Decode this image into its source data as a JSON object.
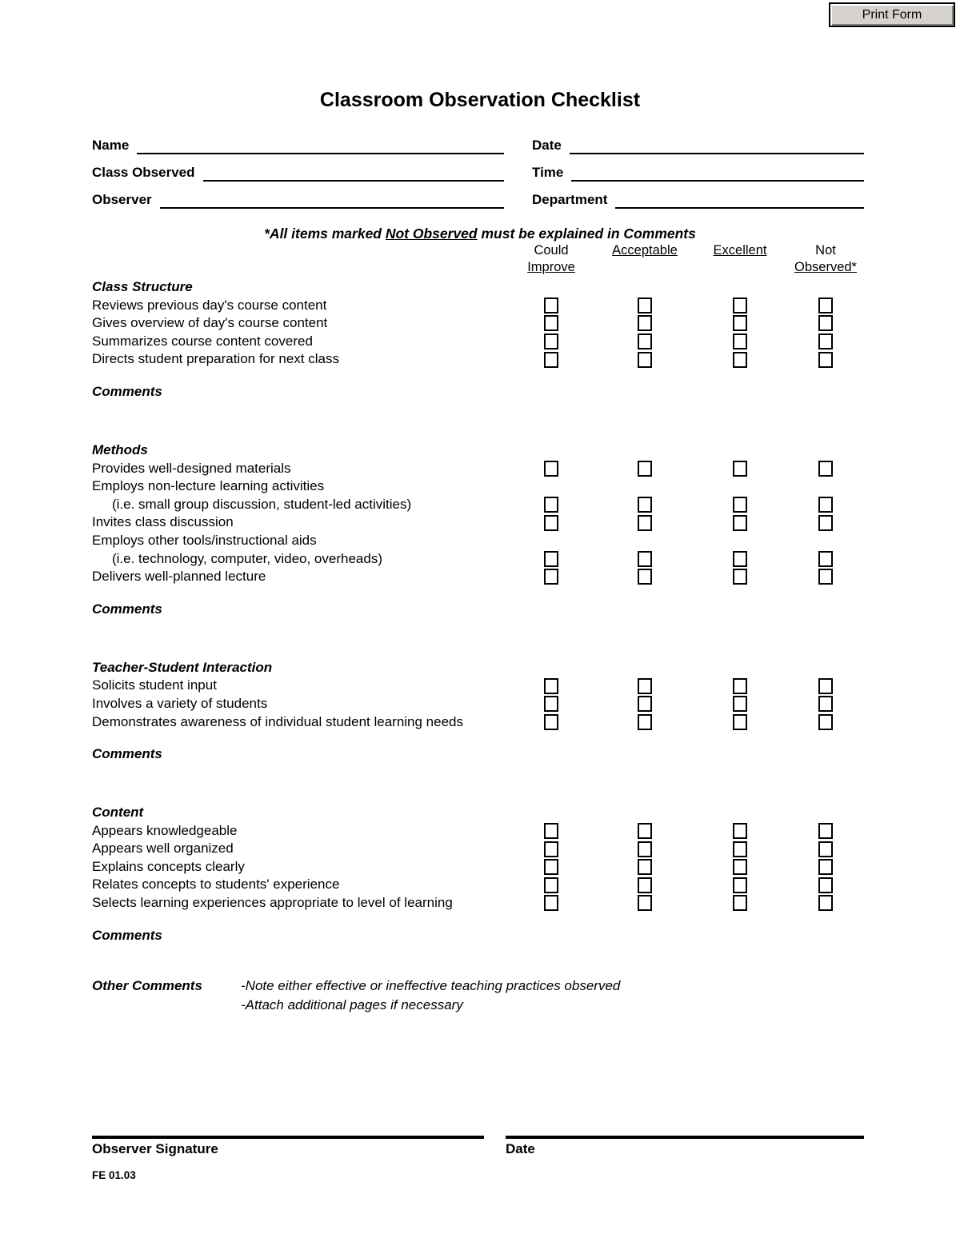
{
  "print_button": {
    "label": "Print Form"
  },
  "title": "Classroom Observation Checklist",
  "header_fields": {
    "left": [
      {
        "label": "Name"
      },
      {
        "label": "Class Observed"
      },
      {
        "label": "Observer"
      }
    ],
    "right": [
      {
        "label": "Date"
      },
      {
        "label": "Time"
      },
      {
        "label": "Department"
      }
    ]
  },
  "note": {
    "prefix": "*All items marked ",
    "underlined": "Not Observed",
    "suffix": " must be explained in Comments"
  },
  "rating_columns": [
    {
      "top": "Could",
      "bottom": "Improve"
    },
    {
      "top": "",
      "bottom": "Acceptable"
    },
    {
      "top": "",
      "bottom": "Excellent"
    },
    {
      "top": "Not",
      "bottom": "Observed*"
    }
  ],
  "comments_label": "Comments",
  "sections": [
    {
      "title": "Class Structure",
      "rows": [
        {
          "label": "Reviews previous day's course content"
        },
        {
          "label": "Gives overview of day's course content"
        },
        {
          "label": "Summarizes course content covered"
        },
        {
          "label": "Directs student preparation for next class"
        }
      ]
    },
    {
      "title": "Methods",
      "rows": [
        {
          "label": "Provides well-designed materials"
        },
        {
          "label": "Employs non-lecture learning activities"
        },
        {
          "label": "(i.e. small group discussion, student-led activities)"
        },
        {
          "label": "Invites class discussion"
        },
        {
          "label": "Employs other tools/instructional aids"
        },
        {
          "label": "(i.e. technology, computer, video, overheads)"
        },
        {
          "label": "Delivers well-planned lecture"
        }
      ]
    },
    {
      "title": "Teacher-Student Interaction",
      "rows": [
        {
          "label": "Solicits student input"
        },
        {
          "label": "Involves a variety of students"
        },
        {
          "label": "Demonstrates awareness of individual student learning needs"
        }
      ]
    },
    {
      "title": "Content",
      "rows": [
        {
          "label": "Appears knowledgeable"
        },
        {
          "label": "Appears well organized"
        },
        {
          "label": "Explains concepts clearly"
        },
        {
          "label": "Relates concepts to students' experience"
        },
        {
          "label": "Selects learning experiences appropriate to level of learning"
        }
      ]
    }
  ],
  "other_comments": {
    "title": "Other Comments",
    "note_line1": "-Note either effective or ineffective teaching practices observed",
    "note_line2": "-Attach additional pages if necessary"
  },
  "footer": {
    "signature_label": "Observer Signature",
    "date_label": "Date",
    "form_code": "FE 01.03"
  }
}
